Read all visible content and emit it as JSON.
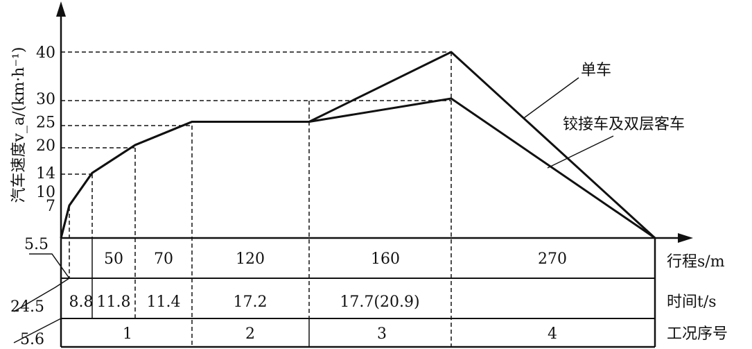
{
  "chart_data": {
    "type": "line",
    "ylabel": "汽车速度v_a/(km·h⁻¹)",
    "y_ticks": [
      7,
      10,
      14,
      20,
      25,
      30,
      40
    ],
    "ylim": [
      0,
      44
    ],
    "x_tick_labels": [
      "5.5",
      "24.5",
      "5.6"
    ],
    "series": [
      {
        "name": "单车",
        "points": [
          [
            0,
            0
          ],
          [
            1,
            7
          ],
          [
            2,
            14
          ],
          [
            3,
            20
          ],
          [
            4,
            25
          ],
          [
            5,
            25
          ],
          [
            6,
            40
          ],
          [
            7,
            0
          ]
        ]
      },
      {
        "name": "铰接车及双层客车",
        "points": [
          [
            0,
            0
          ],
          [
            1,
            7
          ],
          [
            2,
            14
          ],
          [
            3,
            20
          ],
          [
            4,
            25
          ],
          [
            5,
            25
          ],
          [
            6,
            30
          ],
          [
            7,
            0
          ]
        ]
      }
    ],
    "table": {
      "row_labels": [
        "行程s/m",
        "时间t/s",
        "工况序号"
      ],
      "rows": [
        [
          "50",
          "70",
          "120",
          "160",
          "270"
        ],
        [
          "8.8",
          "11.8",
          "11.4",
          "17.2",
          "17.7(20.9)"
        ],
        [
          "1",
          "2",
          "3",
          "4"
        ]
      ]
    }
  }
}
